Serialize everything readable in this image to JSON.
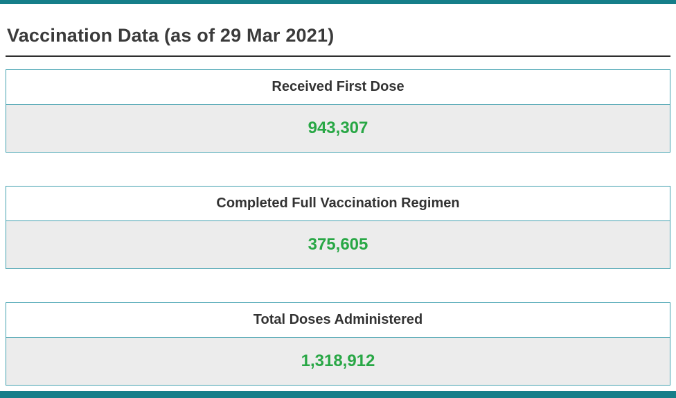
{
  "page": {
    "title": "Vaccination Data (as of 29 Mar 2021)"
  },
  "cards": [
    {
      "label": "Received First Dose",
      "value": "943,307"
    },
    {
      "label": "Completed Full Vaccination Regimen",
      "value": "375,605"
    },
    {
      "label": "Total Doses Administered",
      "value": "1,318,912"
    }
  ],
  "colors": {
    "accent_teal": "#157e89",
    "card_border_teal": "#3f9fae",
    "value_green": "#28a745",
    "value_row_bg": "#ececec",
    "title_text": "#3a3a3a"
  }
}
